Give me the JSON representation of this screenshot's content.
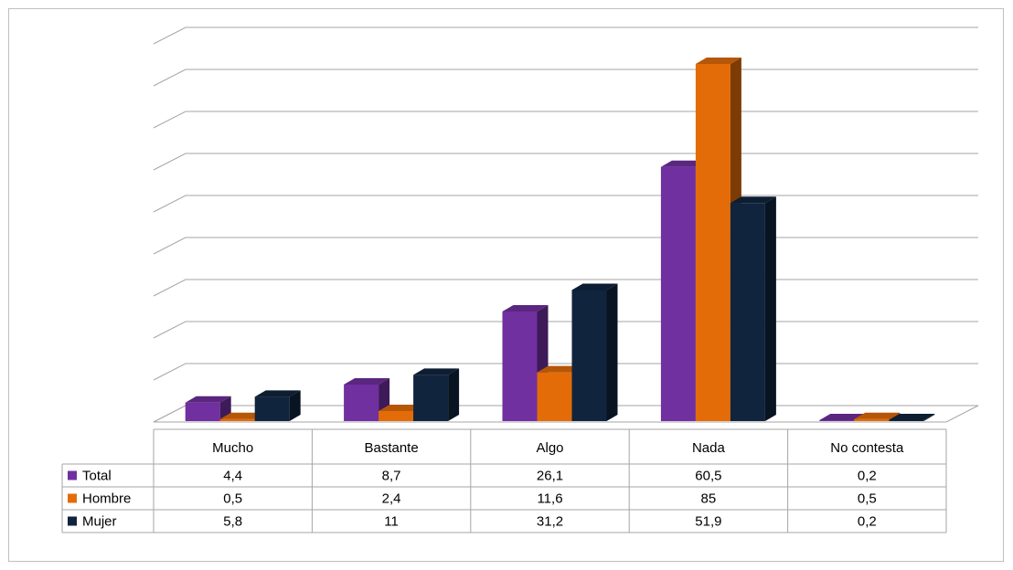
{
  "chart_data": {
    "type": "bar",
    "title": "",
    "xlabel": "",
    "ylabel": "",
    "categories": [
      "Mucho",
      "Bastante",
      "Algo",
      "Nada",
      "No contesta"
    ],
    "series": [
      {
        "name": "Total",
        "color": "#7030a0",
        "values": [
          4.4,
          8.7,
          26.1,
          60.5,
          0.2
        ],
        "labels": [
          "4,4",
          "8,7",
          "26,1",
          "60,5",
          "0,2"
        ]
      },
      {
        "name": "Hombre",
        "color": "#e36c09",
        "values": [
          0.5,
          2.4,
          11.6,
          85,
          0.5
        ],
        "labels": [
          "0,5",
          "2,4",
          "11,6",
          "85",
          "0,5"
        ]
      },
      {
        "name": "Mujer",
        "color": "#10243e",
        "values": [
          5.8,
          11,
          31.2,
          51.9,
          0.2
        ],
        "labels": [
          "5,8",
          "11",
          "31,2",
          "51,9",
          "0,2"
        ]
      }
    ],
    "ylim": [
      0,
      90
    ],
    "grid": true,
    "legend": "data-table-left",
    "style": "3d-clustered-column"
  }
}
